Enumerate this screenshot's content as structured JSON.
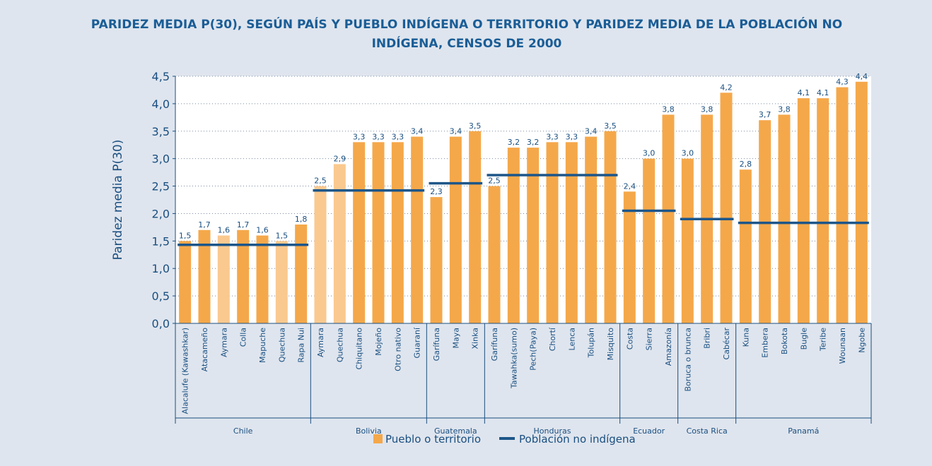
{
  "chart_data": {
    "type": "bar",
    "title": "PARIDEZ MEDIA P(30), SEGÚN PAÍS Y PUEBLO INDÍGENA O TERRITORIO Y PARIDEZ MEDIA DE LA POBLACIÓN NO INDÍGENA, CENSOS DE 2000",
    "ylabel": "Paridez media P(30)",
    "ylim": [
      0,
      4.5
    ],
    "yticks": [
      {
        "value": 0,
        "label": "0,0"
      },
      {
        "value": 0.5,
        "label": "0,5"
      },
      {
        "value": 1,
        "label": "1,0"
      },
      {
        "value": 1.5,
        "label": "1,5"
      },
      {
        "value": 2,
        "label": "2,0"
      },
      {
        "value": 2.5,
        "label": "2,5"
      },
      {
        "value": 3,
        "label": "3,0"
      },
      {
        "value": 3.5,
        "label": "3,5"
      },
      {
        "value": 4,
        "label": "4,0"
      },
      {
        "value": 4.5,
        "label": "4,5"
      }
    ],
    "grid": true,
    "legend": {
      "bar_name": "Pueblo o territorio",
      "bar_color": "#f5a84a",
      "line_name": "Población no indígena",
      "line_color": "#1d5689"
    },
    "groups": [
      {
        "name": "Chile",
        "categories": [
          "Alacalufe (Kawashkar)",
          "Atacameño",
          "Aymara",
          "Colla",
          "Mapuche",
          "Quechua",
          "Rapa Nui"
        ],
        "values": [
          1.5,
          1.7,
          1.6,
          1.7,
          1.6,
          1.5,
          1.8
        ],
        "value_labels": [
          "1,5",
          "1,7",
          "1,6",
          "1,7",
          "1,6",
          "1,5",
          "1,8"
        ],
        "colors": [
          "#f5a84a",
          "#f5a84a",
          "#fac98f",
          "#f5a84a",
          "#f5a84a",
          "#fac98f",
          "#f5a84a"
        ],
        "reference": 1.43
      },
      {
        "name": "Bolivia",
        "categories": [
          "Aymara",
          "Quechua",
          "Chiquitano",
          "Mojeño",
          "Otro nativo",
          "Guaraní"
        ],
        "values": [
          2.5,
          2.9,
          3.3,
          3.3,
          3.3,
          3.4
        ],
        "value_labels": [
          "2,5",
          "2,9",
          "3,3",
          "3,3",
          "3,3",
          "3,4"
        ],
        "colors": [
          "#fac98f",
          "#fac98f",
          "#f5a84a",
          "#f5a84a",
          "#f5a84a",
          "#f5a84a"
        ],
        "reference": 2.42
      },
      {
        "name": "Guatemala",
        "categories": [
          "Garífuna",
          "Maya",
          "Xinka"
        ],
        "values": [
          2.3,
          3.4,
          3.5
        ],
        "value_labels": [
          "2,3",
          "3,4",
          "3,5"
        ],
        "colors": [
          "#f5a84a",
          "#f5a84a",
          "#f5a84a"
        ],
        "reference": 2.55
      },
      {
        "name": "Honduras",
        "categories": [
          "Garífuna",
          "Tawahka(sumo)",
          "Pech(Paya)",
          "Chortí",
          "Lenca",
          "Tolupán",
          "Misquito"
        ],
        "values": [
          2.5,
          3.2,
          3.2,
          3.3,
          3.3,
          3.4,
          3.5
        ],
        "value_labels": [
          "2,5",
          "3,2",
          "3,2",
          "3,3",
          "3,3",
          "3,4",
          "3,5"
        ],
        "colors": [
          "#f5a84a",
          "#f5a84a",
          "#f5a84a",
          "#f5a84a",
          "#f5a84a",
          "#f5a84a",
          "#f5a84a"
        ],
        "reference": 2.7
      },
      {
        "name": "Ecuador",
        "categories": [
          "Costa",
          "Sierra",
          "Amazonía"
        ],
        "values": [
          2.4,
          3.0,
          3.8
        ],
        "value_labels": [
          "2,4",
          "3,0",
          "3,8"
        ],
        "colors": [
          "#f5a84a",
          "#f5a84a",
          "#f5a84a"
        ],
        "reference": 2.05
      },
      {
        "name": "Costa Rica",
        "categories": [
          "Boruca o brunca",
          "Bribri",
          "Cabécar"
        ],
        "values": [
          3.0,
          3.8,
          4.2
        ],
        "value_labels": [
          "3,0",
          "3,8",
          "4,2"
        ],
        "colors": [
          "#f5a84a",
          "#f5a84a",
          "#f5a84a"
        ],
        "reference": 1.9
      },
      {
        "name": "Panamá",
        "categories": [
          "Kuna",
          "Embera",
          "Bokota",
          "Bugle",
          "Teribe",
          "Wounaan",
          "Ngobe"
        ],
        "values": [
          2.8,
          3.7,
          3.8,
          4.1,
          4.1,
          4.3,
          4.4
        ],
        "value_labels": [
          "2,8",
          "3,7",
          "3,8",
          "4,1",
          "4,1",
          "4,3",
          "4,4"
        ],
        "colors": [
          "#f5a84a",
          "#f5a84a",
          "#f5a84a",
          "#f5a84a",
          "#f5a84a",
          "#f5a84a",
          "#f5a84a"
        ],
        "reference": 1.83
      }
    ]
  }
}
